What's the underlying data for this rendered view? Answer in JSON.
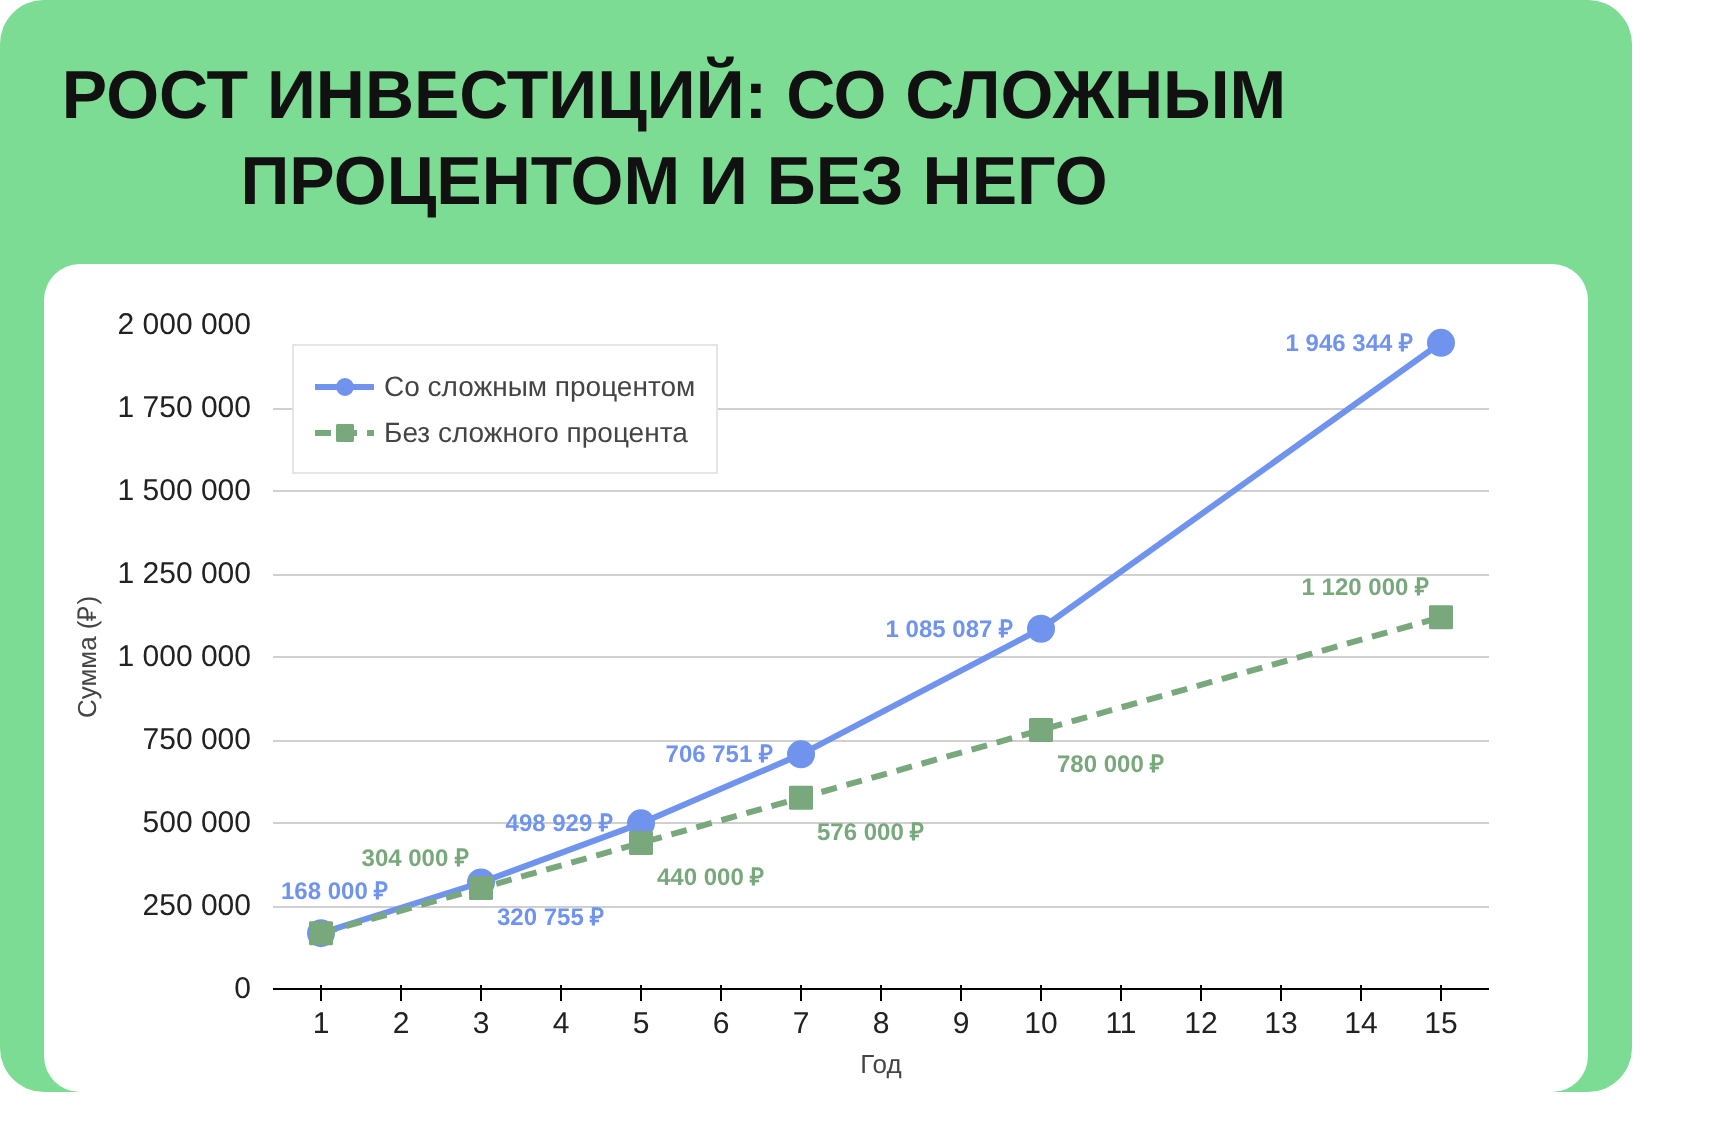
{
  "chart_data": {
    "type": "line",
    "title": "РОСТ ИНВЕСТИЦИЙ: СО СЛОЖНЫМ ПРОЦЕНТОМ И БЕЗ НЕГО",
    "xlabel": "Год",
    "ylabel": "Сумма (₽)",
    "x": [
      1,
      3,
      5,
      7,
      10,
      15
    ],
    "series": [
      {
        "name": "Со сложным процентом",
        "color": "#7094ee",
        "values": [
          168000,
          320755,
          498929,
          706751,
          1085087,
          1946344
        ],
        "marker": "circle",
        "line_style": "solid",
        "value_labels": [
          "168 000 ₽",
          "320 755 ₽",
          "498 929 ₽",
          "706 751 ₽",
          "1 085 087 ₽",
          "1 946 344 ₽"
        ]
      },
      {
        "name": "Без сложного процента",
        "color": "#78a87c",
        "values": [
          168000,
          304000,
          440000,
          576000,
          780000,
          1120000
        ],
        "marker": "square",
        "line_style": "dashed",
        "value_labels": [
          null,
          "304 000 ₽",
          "440 000 ₽",
          "576 000 ₽",
          "780 000 ₽",
          "1 120 000 ₽"
        ]
      }
    ],
    "xlim": [
      0.4,
      15.6
    ],
    "xticks": [
      1,
      2,
      3,
      4,
      5,
      6,
      7,
      8,
      9,
      10,
      11,
      12,
      13,
      14,
      15
    ],
    "ylim": [
      0,
      2000000
    ],
    "yticks": [
      {
        "value": 0,
        "label": "0"
      },
      {
        "value": 250000,
        "label": "250 000"
      },
      {
        "value": 500000,
        "label": "500 000"
      },
      {
        "value": 750000,
        "label": "750 000"
      },
      {
        "value": 1000000,
        "label": "1 000 000"
      },
      {
        "value": 1250000,
        "label": "1 250 000"
      },
      {
        "value": 1500000,
        "label": "1 500 000"
      },
      {
        "value": 1750000,
        "label": "1 750 000"
      },
      {
        "value": 2000000,
        "label": "2 000 000"
      }
    ],
    "grid": "y",
    "legend": "top left"
  }
}
